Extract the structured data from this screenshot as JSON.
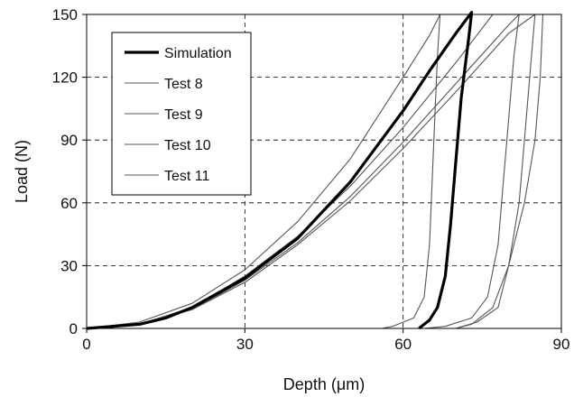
{
  "chart_data": {
    "type": "line",
    "title": "",
    "xlabel": "Depth (μm)",
    "ylabel": "Load (N)",
    "xlim": [
      0,
      90
    ],
    "ylim": [
      0,
      150
    ],
    "xticks": [
      "0",
      "30",
      "60",
      "90"
    ],
    "yticks": [
      "0",
      "30",
      "60",
      "90",
      "120",
      "150"
    ],
    "grid": true,
    "legend_position": "top-left",
    "series": [
      {
        "name": "Simulation",
        "color": "#000000",
        "emphasis": "bold",
        "points": [
          [
            0,
            0
          ],
          [
            10,
            2
          ],
          [
            15,
            5
          ],
          [
            20,
            10
          ],
          [
            30,
            24
          ],
          [
            40,
            43
          ],
          [
            50,
            70
          ],
          [
            60,
            104
          ],
          [
            65,
            123
          ],
          [
            70,
            141
          ],
          [
            73,
            151
          ],
          [
            72.5,
            140
          ],
          [
            71,
            110
          ],
          [
            70,
            80
          ],
          [
            69,
            50
          ],
          [
            68,
            25
          ],
          [
            66.5,
            10
          ],
          [
            65,
            4
          ],
          [
            63,
            0
          ]
        ]
      },
      {
        "name": "Test 8",
        "color": "#555555",
        "points": [
          [
            0,
            0
          ],
          [
            10,
            3
          ],
          [
            20,
            12
          ],
          [
            30,
            28
          ],
          [
            40,
            51
          ],
          [
            50,
            81
          ],
          [
            60,
            120
          ],
          [
            65,
            140
          ],
          [
            67,
            150
          ],
          [
            66.5,
            130
          ],
          [
            66,
            100
          ],
          [
            65.5,
            70
          ],
          [
            65,
            40
          ],
          [
            64,
            15
          ],
          [
            62,
            5
          ],
          [
            58,
            1
          ],
          [
            56,
            0
          ]
        ]
      },
      {
        "name": "Test 9",
        "color": "#555555",
        "points": [
          [
            0,
            0
          ],
          [
            10,
            2
          ],
          [
            20,
            9
          ],
          [
            30,
            23
          ],
          [
            40,
            41
          ],
          [
            50,
            63
          ],
          [
            60,
            89
          ],
          [
            70,
            117
          ],
          [
            80,
            145
          ],
          [
            82,
            150
          ],
          [
            81,
            130
          ],
          [
            80,
            100
          ],
          [
            79,
            70
          ],
          [
            78,
            40
          ],
          [
            76,
            15
          ],
          [
            73,
            5
          ],
          [
            68,
            1
          ],
          [
            64,
            0
          ]
        ]
      },
      {
        "name": "Test 10",
        "color": "#555555",
        "points": [
          [
            0,
            0
          ],
          [
            10,
            2
          ],
          [
            20,
            9
          ],
          [
            30,
            22
          ],
          [
            40,
            40
          ],
          [
            50,
            61
          ],
          [
            60,
            86
          ],
          [
            70,
            113
          ],
          [
            80,
            141
          ],
          [
            85,
            150
          ],
          [
            84,
            120
          ],
          [
            83,
            90
          ],
          [
            82,
            60
          ],
          [
            80,
            30
          ],
          [
            78,
            10
          ],
          [
            74,
            3
          ],
          [
            70,
            0
          ]
        ]
      },
      {
        "name": "Test 11",
        "color": "#555555",
        "points": [
          [
            0,
            0
          ],
          [
            10,
            2
          ],
          [
            20,
            10
          ],
          [
            30,
            25
          ],
          [
            40,
            44
          ],
          [
            50,
            68
          ],
          [
            60,
            96
          ],
          [
            70,
            127
          ],
          [
            77,
            150
          ],
          [
            86.5,
            150
          ],
          [
            86,
            120
          ],
          [
            85,
            90
          ],
          [
            83,
            60
          ],
          [
            80,
            30
          ],
          [
            77,
            10
          ],
          [
            73,
            2
          ],
          [
            70,
            0
          ]
        ]
      }
    ]
  }
}
